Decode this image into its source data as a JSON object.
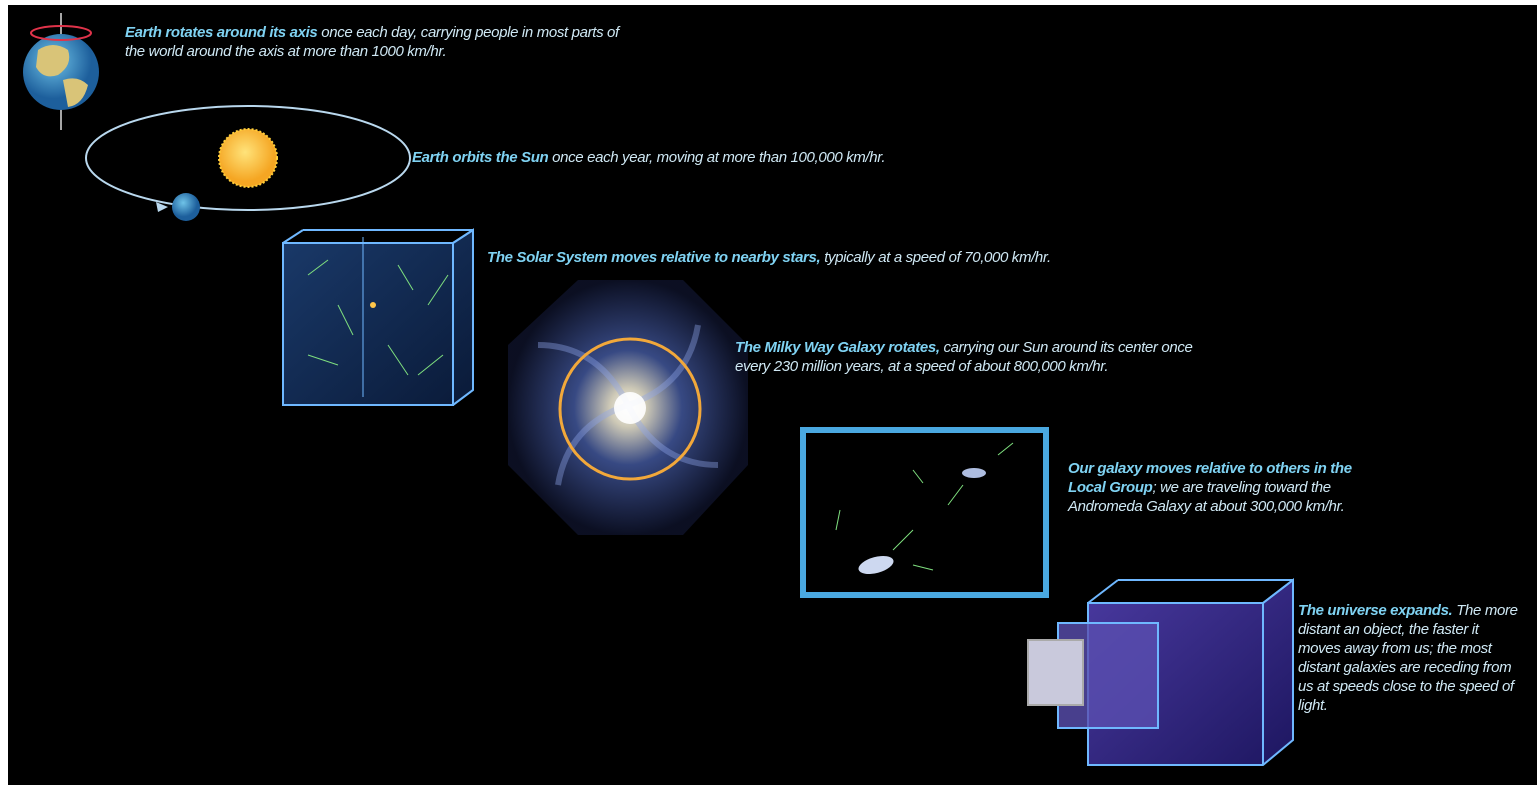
{
  "items": [
    {
      "bold": "Earth rotates around its axis",
      "text": "once each day, carrying people in most parts of the world around the axis at more than 1000 km/hr."
    },
    {
      "bold": "Earth orbits the Sun",
      "text": "once each year, moving at more than 100,000 km/hr."
    },
    {
      "bold": "The Solar System moves relative to nearby stars,",
      "text": "typically at a speed of 70,000 km/hr."
    },
    {
      "bold": "The Milky Way Galaxy rotates,",
      "text": "carrying our Sun around its center once every 230 million years, at a speed of about 800,000 km/hr."
    },
    {
      "bold": "Our galaxy moves relative to others in the Local Group",
      "text": "; we are traveling toward the Andromeda Galaxy at about 300,000 km/hr."
    },
    {
      "bold": "The universe expands.",
      "text": "The more distant an object, the faster it moves away from us; the most distant galaxies are receding from us at speeds close to the speed of light."
    }
  ]
}
